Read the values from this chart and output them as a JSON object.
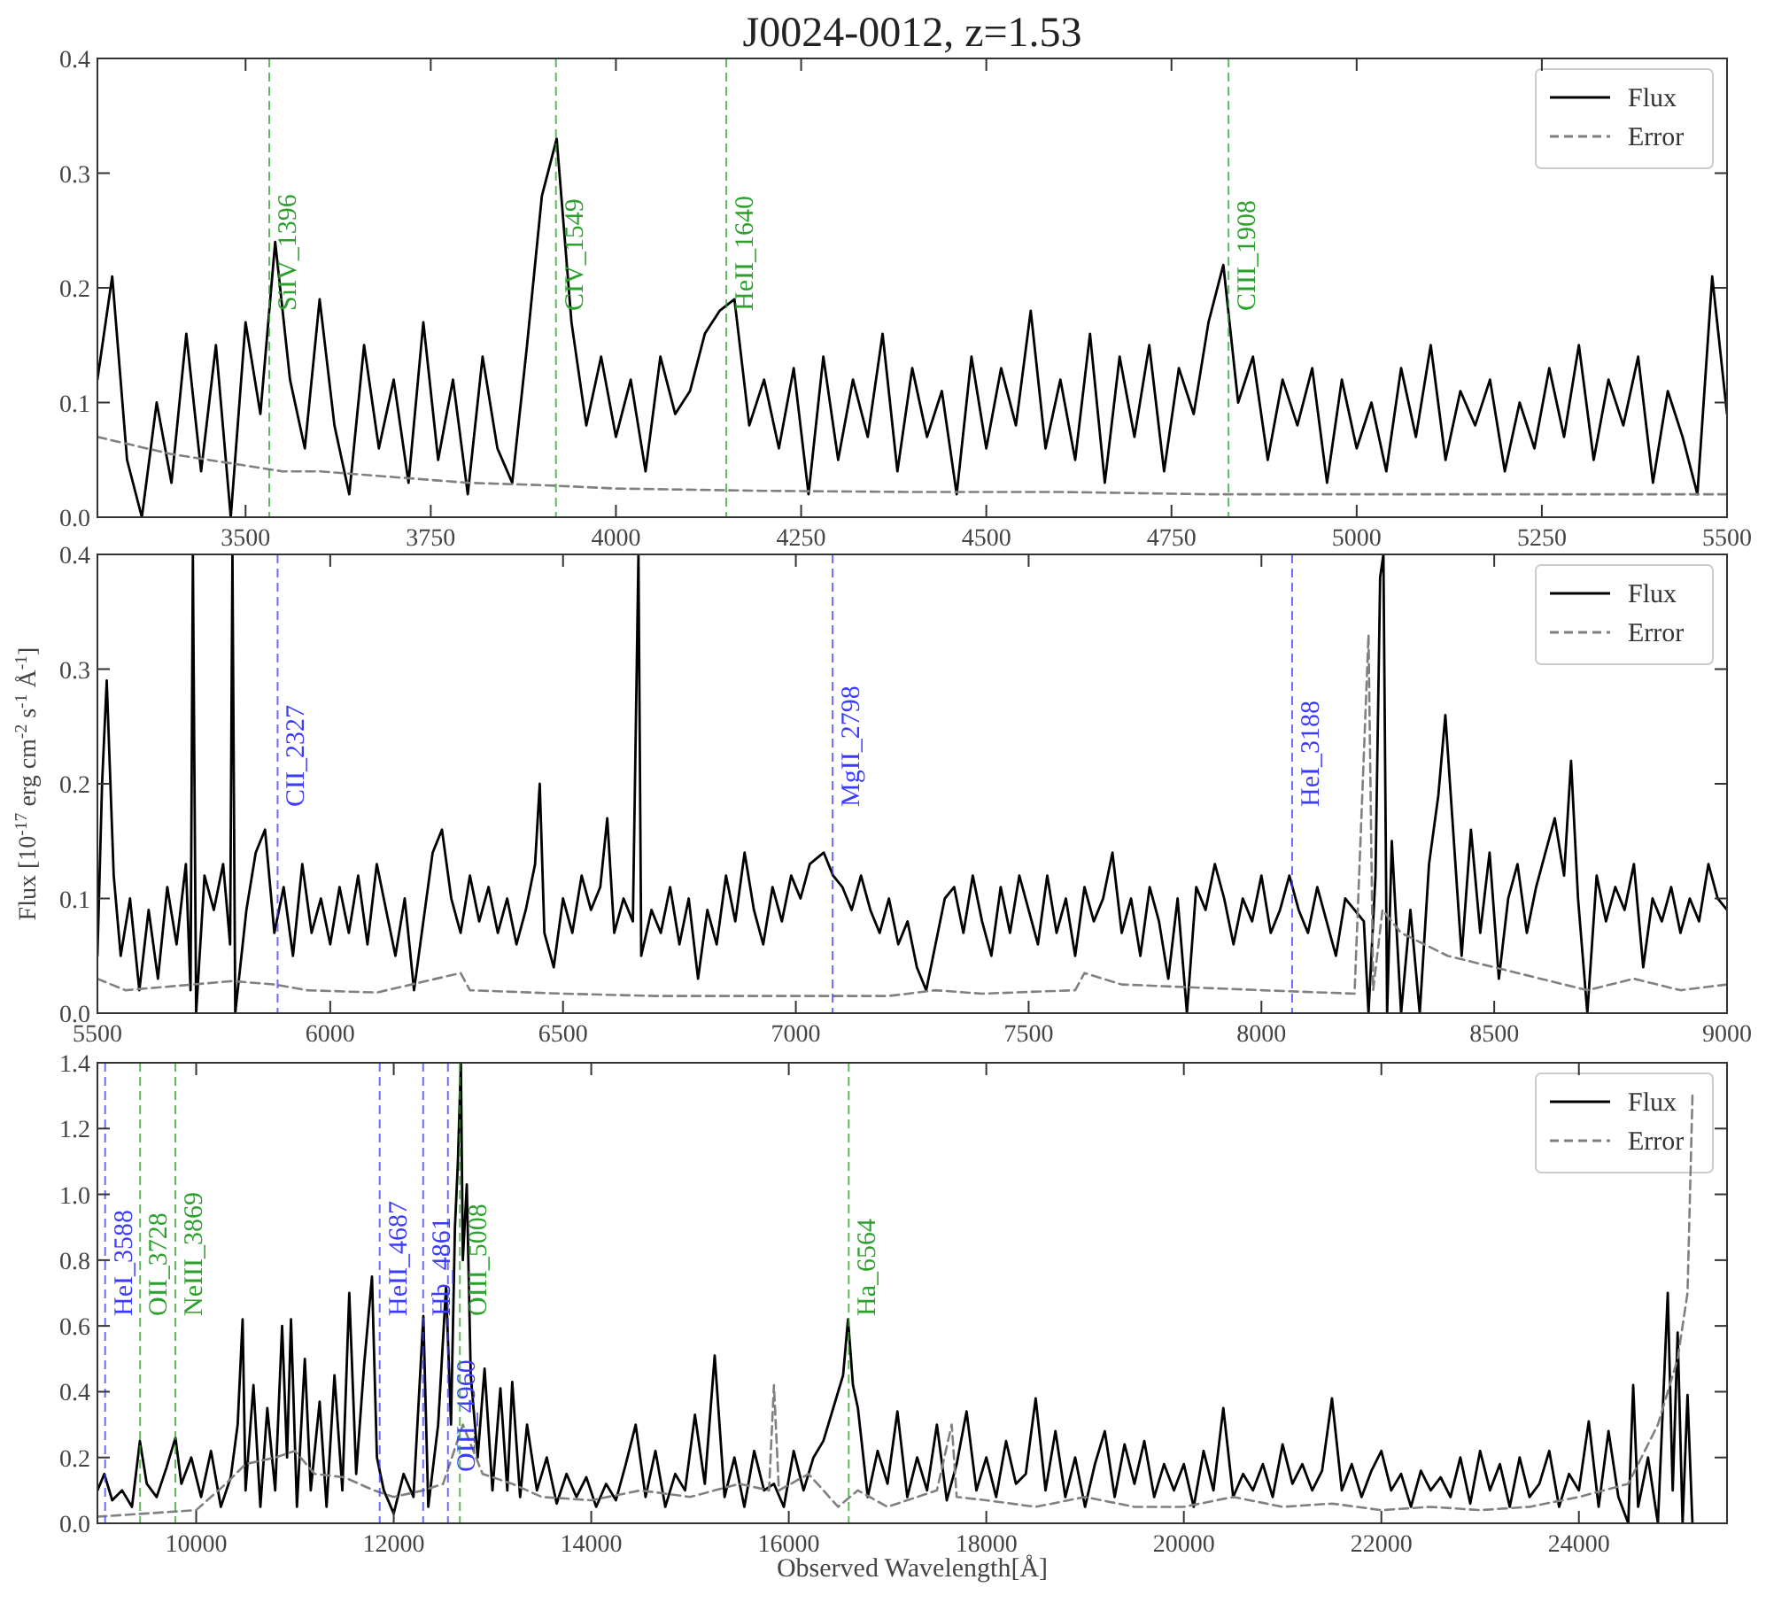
{
  "chart_data": [
    {
      "type": "line",
      "title": "J0024-0012, z=1.53",
      "xlim": [
        3300,
        5500
      ],
      "ylim": [
        0,
        0.4
      ],
      "xticks": [
        3500,
        3750,
        4000,
        4250,
        4500,
        4750,
        5000,
        5250,
        5500
      ],
      "yticks": [
        {
          "value": 0,
          "label": "0.0"
        },
        {
          "value": 0.1,
          "label": "0.1"
        },
        {
          "value": 0.2,
          "label": "0.2"
        },
        {
          "value": 0.3,
          "label": "0.3"
        },
        {
          "value": 0.4,
          "label": "0.4"
        }
      ],
      "legend": "top right",
      "grid": false,
      "series": [
        {
          "name": "Flux",
          "color": "#000000",
          "line_style": "solid",
          "x": [
            3300,
            3320,
            3340,
            3360,
            3380,
            3400,
            3420,
            3440,
            3460,
            3480,
            3500,
            3520,
            3540,
            3560,
            3580,
            3600,
            3620,
            3640,
            3660,
            3680,
            3700,
            3720,
            3740,
            3760,
            3780,
            3800,
            3820,
            3840,
            3860,
            3880,
            3900,
            3920,
            3940,
            3960,
            3980,
            4000,
            4020,
            4040,
            4060,
            4080,
            4100,
            4120,
            4140,
            4160,
            4180,
            4200,
            4220,
            4240,
            4260,
            4280,
            4300,
            4320,
            4340,
            4360,
            4380,
            4400,
            4420,
            4440,
            4460,
            4480,
            4500,
            4520,
            4540,
            4560,
            4580,
            4600,
            4620,
            4640,
            4660,
            4680,
            4700,
            4720,
            4740,
            4760,
            4780,
            4800,
            4820,
            4840,
            4860,
            4880,
            4900,
            4920,
            4940,
            4960,
            4980,
            5000,
            5020,
            5040,
            5060,
            5080,
            5100,
            5120,
            5140,
            5160,
            5180,
            5200,
            5220,
            5240,
            5260,
            5280,
            5300,
            5320,
            5340,
            5360,
            5380,
            5400,
            5420,
            5440,
            5460,
            5480,
            5500
          ],
          "values": [
            0.12,
            0.21,
            0.05,
            0.0,
            0.1,
            0.03,
            0.16,
            0.04,
            0.15,
            0.0,
            0.17,
            0.09,
            0.24,
            0.12,
            0.06,
            0.19,
            0.08,
            0.02,
            0.15,
            0.06,
            0.12,
            0.03,
            0.17,
            0.05,
            0.12,
            0.02,
            0.14,
            0.06,
            0.03,
            0.15,
            0.28,
            0.33,
            0.17,
            0.08,
            0.14,
            0.07,
            0.12,
            0.04,
            0.14,
            0.09,
            0.11,
            0.16,
            0.18,
            0.19,
            0.08,
            0.12,
            0.06,
            0.13,
            0.02,
            0.14,
            0.05,
            0.12,
            0.07,
            0.16,
            0.04,
            0.13,
            0.07,
            0.11,
            0.02,
            0.14,
            0.06,
            0.13,
            0.08,
            0.18,
            0.06,
            0.12,
            0.05,
            0.16,
            0.03,
            0.14,
            0.07,
            0.15,
            0.04,
            0.13,
            0.09,
            0.17,
            0.22,
            0.1,
            0.14,
            0.05,
            0.12,
            0.08,
            0.13,
            0.03,
            0.12,
            0.06,
            0.1,
            0.04,
            0.13,
            0.07,
            0.15,
            0.05,
            0.11,
            0.08,
            0.12,
            0.04,
            0.1,
            0.06,
            0.13,
            0.07,
            0.15,
            0.05,
            0.12,
            0.08,
            0.14,
            0.03,
            0.11,
            0.07,
            0.02,
            0.21,
            0.09
          ]
        },
        {
          "name": "Error",
          "color": "#808080",
          "line_style": "dashed",
          "x": [
            3300,
            3400,
            3500,
            3550,
            3600,
            3700,
            3800,
            3900,
            4000,
            4200,
            4400,
            4600,
            4800,
            5000,
            5200,
            5400,
            5500
          ],
          "values": [
            0.07,
            0.055,
            0.045,
            0.04,
            0.04,
            0.035,
            0.03,
            0.028,
            0.025,
            0.023,
            0.022,
            0.022,
            0.02,
            0.02,
            0.02,
            0.02,
            0.02
          ]
        }
      ],
      "ref_lines": [
        {
          "axis": "x",
          "value": 3532,
          "label": "SiIV_1396",
          "color": "#2ca02c",
          "line_style": "dashed"
        },
        {
          "axis": "x",
          "value": 3919,
          "label": "CIV_1549",
          "color": "#2ca02c",
          "line_style": "dashed"
        },
        {
          "axis": "x",
          "value": 4149,
          "label": "HeII_1640",
          "color": "#2ca02c",
          "line_style": "dashed"
        },
        {
          "axis": "x",
          "value": 4827,
          "label": "CIII_1908",
          "color": "#2ca02c",
          "line_style": "dashed"
        }
      ]
    },
    {
      "type": "line",
      "ylabel": "Flux [10$^{-17}$ erg cm$^{-2}$ s$^{-1}$ Å$^{-1}$]",
      "xlim": [
        5500,
        9000
      ],
      "ylim": [
        0,
        0.4
      ],
      "xticks": [
        5500,
        6000,
        6500,
        7000,
        7500,
        8000,
        8500,
        9000
      ],
      "yticks": [
        {
          "value": 0,
          "label": "0.0"
        },
        {
          "value": 0.1,
          "label": "0.1"
        },
        {
          "value": 0.2,
          "label": "0.2"
        },
        {
          "value": 0.3,
          "label": "0.3"
        },
        {
          "value": 0.4,
          "label": "0.4"
        }
      ],
      "legend": "top right",
      "grid": false,
      "series": [
        {
          "name": "Flux",
          "color": "#000000",
          "line_style": "solid",
          "x": [
            5500,
            5510,
            5520,
            5535,
            5550,
            5570,
            5590,
            5610,
            5630,
            5650,
            5670,
            5690,
            5700,
            5705,
            5712,
            5730,
            5750,
            5770,
            5785,
            5790,
            5796,
            5820,
            5840,
            5860,
            5880,
            5900,
            5920,
            5940,
            5960,
            5980,
            6000,
            6020,
            6040,
            6060,
            6080,
            6100,
            6120,
            6140,
            6160,
            6180,
            6200,
            6220,
            6240,
            6260,
            6280,
            6300,
            6320,
            6340,
            6360,
            6380,
            6400,
            6420,
            6440,
            6450,
            6460,
            6480,
            6500,
            6520,
            6540,
            6560,
            6580,
            6595,
            6610,
            6630,
            6650,
            6662,
            6668,
            6690,
            6710,
            6730,
            6750,
            6770,
            6790,
            6810,
            6830,
            6850,
            6870,
            6890,
            6910,
            6930,
            6950,
            6970,
            6990,
            7010,
            7030,
            7060,
            7080,
            7100,
            7120,
            7140,
            7160,
            7180,
            7200,
            7220,
            7240,
            7260,
            7280,
            7300,
            7320,
            7340,
            7360,
            7380,
            7400,
            7420,
            7440,
            7460,
            7480,
            7500,
            7520,
            7540,
            7560,
            7580,
            7600,
            7620,
            7640,
            7660,
            7680,
            7700,
            7720,
            7740,
            7760,
            7780,
            7800,
            7820,
            7840,
            7860,
            7880,
            7900,
            7920,
            7940,
            7960,
            7980,
            8000,
            8020,
            8040,
            8060,
            8080,
            8100,
            8120,
            8140,
            8160,
            8180,
            8200,
            8220,
            8230,
            8245,
            8255,
            8262,
            8270,
            8280,
            8300,
            8320,
            8340,
            8360,
            8380,
            8395,
            8410,
            8430,
            8450,
            8470,
            8490,
            8510,
            8530,
            8550,
            8570,
            8590,
            8610,
            8630,
            8650,
            8665,
            8680,
            8700,
            8720,
            8740,
            8760,
            8780,
            8800,
            8820,
            8840,
            8860,
            8880,
            8900,
            8920,
            8940,
            8960,
            8980,
            9000
          ],
          "values": [
            0.05,
            0.2,
            0.29,
            0.12,
            0.05,
            0.1,
            0.02,
            0.09,
            0.03,
            0.11,
            0.06,
            0.13,
            0.02,
            0.4,
            0.0,
            0.12,
            0.09,
            0.13,
            0.06,
            0.4,
            0.0,
            0.09,
            0.14,
            0.16,
            0.07,
            0.11,
            0.05,
            0.13,
            0.07,
            0.1,
            0.06,
            0.11,
            0.07,
            0.12,
            0.06,
            0.13,
            0.09,
            0.05,
            0.1,
            0.02,
            0.08,
            0.14,
            0.16,
            0.1,
            0.07,
            0.12,
            0.08,
            0.11,
            0.07,
            0.1,
            0.06,
            0.09,
            0.13,
            0.2,
            0.07,
            0.04,
            0.1,
            0.07,
            0.12,
            0.09,
            0.11,
            0.17,
            0.07,
            0.1,
            0.08,
            0.4,
            0.05,
            0.09,
            0.07,
            0.11,
            0.06,
            0.1,
            0.03,
            0.09,
            0.06,
            0.12,
            0.08,
            0.14,
            0.09,
            0.06,
            0.11,
            0.08,
            0.12,
            0.1,
            0.13,
            0.14,
            0.12,
            0.11,
            0.09,
            0.12,
            0.09,
            0.07,
            0.1,
            0.06,
            0.08,
            0.04,
            0.02,
            0.06,
            0.1,
            0.11,
            0.07,
            0.12,
            0.08,
            0.05,
            0.11,
            0.07,
            0.12,
            0.09,
            0.06,
            0.12,
            0.07,
            0.1,
            0.05,
            0.11,
            0.08,
            0.1,
            0.14,
            0.07,
            0.1,
            0.05,
            0.11,
            0.08,
            0.03,
            0.1,
            0.0,
            0.11,
            0.09,
            0.13,
            0.1,
            0.06,
            0.1,
            0.08,
            0.12,
            0.07,
            0.09,
            0.12,
            0.09,
            0.07,
            0.11,
            0.08,
            0.05,
            0.1,
            0.09,
            0.08,
            0.0,
            0.12,
            0.38,
            0.4,
            0.0,
            0.15,
            0.0,
            0.09,
            0.0,
            0.13,
            0.19,
            0.26,
            0.17,
            0.05,
            0.16,
            0.07,
            0.14,
            0.03,
            0.1,
            0.13,
            0.07,
            0.11,
            0.14,
            0.17,
            0.12,
            0.22,
            0.1,
            0.0,
            0.12,
            0.08,
            0.11,
            0.09,
            0.13,
            0.04,
            0.1,
            0.08,
            0.11,
            0.07,
            0.1,
            0.08,
            0.13,
            0.1,
            0.09
          ]
        },
        {
          "name": "Error",
          "color": "#808080",
          "line_style": "dashed",
          "x": [
            5500,
            5530,
            5560,
            5705,
            5790,
            5880,
            5950,
            6100,
            6280,
            6300,
            6500,
            6700,
            7000,
            7200,
            7300,
            7400,
            7600,
            7620,
            7700,
            8000,
            8200,
            8230,
            8240,
            8260,
            8300,
            8400,
            8500,
            8600,
            8700,
            8800,
            8900,
            9000
          ],
          "values": [
            0.03,
            0.025,
            0.02,
            0.025,
            0.028,
            0.025,
            0.02,
            0.018,
            0.035,
            0.02,
            0.017,
            0.015,
            0.015,
            0.015,
            0.02,
            0.017,
            0.02,
            0.035,
            0.025,
            0.02,
            0.017,
            0.33,
            0.02,
            0.09,
            0.07,
            0.05,
            0.04,
            0.03,
            0.02,
            0.03,
            0.02,
            0.025
          ]
        }
      ],
      "ref_lines": [
        {
          "axis": "x",
          "value": 5887,
          "label": "CII_2327",
          "color": "#3b3bff",
          "line_style": "dashed"
        },
        {
          "axis": "x",
          "value": 7079,
          "label": "MgII_2798",
          "color": "#3b3bff",
          "line_style": "dashed"
        },
        {
          "axis": "x",
          "value": 8066,
          "label": "HeI_3188",
          "color": "#3b3bff",
          "line_style": "dashed"
        }
      ]
    },
    {
      "type": "line",
      "xlabel": "Observed Wavelength[Å]",
      "xlim": [
        9000,
        25500
      ],
      "ylim": [
        0,
        1.4
      ],
      "xticks": [
        10000,
        12000,
        14000,
        16000,
        18000,
        20000,
        22000,
        24000
      ],
      "yticks": [
        {
          "value": 0,
          "label": "0.0"
        },
        {
          "value": 0.2,
          "label": "0.2"
        },
        {
          "value": 0.4,
          "label": "0.4"
        },
        {
          "value": 0.6,
          "label": "0.6"
        },
        {
          "value": 0.8,
          "label": "0.8"
        },
        {
          "value": 1.0,
          "label": "1.0"
        },
        {
          "value": 1.2,
          "label": "1.2"
        },
        {
          "value": 1.4,
          "label": "1.4"
        }
      ],
      "legend": "top right",
      "grid": false,
      "series": [
        {
          "name": "Flux",
          "color": "#000000",
          "line_style": "solid",
          "x": [
            9000,
            9070,
            9150,
            9250,
            9350,
            9430,
            9500,
            9600,
            9700,
            9790,
            9850,
            9950,
            10050,
            10150,
            10250,
            10350,
            10420,
            10470,
            10500,
            10580,
            10650,
            10720,
            10800,
            10870,
            10920,
            10960,
            11020,
            11100,
            11160,
            11250,
            11320,
            11400,
            11480,
            11550,
            11620,
            11700,
            11780,
            11830,
            11900,
            12000,
            12100,
            12200,
            12300,
            12350,
            12450,
            12530,
            12580,
            12620,
            12650,
            12680,
            12700,
            12740,
            12780,
            12850,
            12920,
            13000,
            13080,
            13150,
            13200,
            13280,
            13350,
            13450,
            13550,
            13650,
            13750,
            13850,
            13950,
            14050,
            14150,
            14250,
            14350,
            14450,
            14550,
            14650,
            14750,
            14850,
            14950,
            15050,
            15150,
            15250,
            15350,
            15450,
            15550,
            15650,
            15750,
            15850,
            15950,
            16050,
            16150,
            16250,
            16350,
            16450,
            16550,
            16600,
            16650,
            16700,
            16800,
            16900,
            17000,
            17100,
            17200,
            17300,
            17400,
            17500,
            17600,
            17700,
            17800,
            17900,
            18000,
            18100,
            18200,
            18300,
            18400,
            18500,
            18600,
            18700,
            18800,
            18900,
            19000,
            19100,
            19200,
            19300,
            19400,
            19500,
            19600,
            19700,
            19800,
            19900,
            20000,
            20100,
            20200,
            20300,
            20400,
            20500,
            20600,
            20700,
            20800,
            20900,
            21000,
            21100,
            21200,
            21300,
            21400,
            21500,
            21600,
            21700,
            21800,
            21900,
            22000,
            22100,
            22200,
            22300,
            22400,
            22500,
            22600,
            22700,
            22800,
            22900,
            23000,
            23100,
            23200,
            23300,
            23400,
            23500,
            23600,
            23700,
            23800,
            23900,
            24000,
            24100,
            24200,
            24300,
            24400,
            24500,
            24550,
            24600,
            24700,
            24800,
            24900,
            24950,
            25000,
            25050,
            25100,
            25150
          ],
          "values": [
            0.1,
            0.15,
            0.07,
            0.1,
            0.05,
            0.25,
            0.12,
            0.08,
            0.17,
            0.26,
            0.12,
            0.2,
            0.08,
            0.22,
            0.05,
            0.14,
            0.3,
            0.62,
            0.1,
            0.42,
            0.05,
            0.35,
            0.1,
            0.6,
            0.2,
            0.62,
            0.05,
            0.5,
            0.1,
            0.37,
            0.05,
            0.45,
            0.1,
            0.7,
            0.15,
            0.48,
            0.75,
            0.2,
            0.1,
            0.03,
            0.15,
            0.08,
            0.63,
            0.05,
            0.3,
            0.72,
            0.3,
            0.9,
            1.1,
            1.4,
            0.8,
            1.03,
            0.45,
            0.2,
            0.47,
            0.1,
            0.41,
            0.1,
            0.43,
            0.08,
            0.3,
            0.1,
            0.2,
            0.06,
            0.15,
            0.08,
            0.14,
            0.05,
            0.12,
            0.07,
            0.18,
            0.3,
            0.08,
            0.22,
            0.05,
            0.15,
            0.1,
            0.33,
            0.12,
            0.51,
            0.08,
            0.2,
            0.05,
            0.22,
            0.1,
            0.12,
            0.05,
            0.22,
            0.1,
            0.2,
            0.25,
            0.35,
            0.45,
            0.62,
            0.42,
            0.35,
            0.08,
            0.22,
            0.12,
            0.34,
            0.08,
            0.2,
            0.1,
            0.3,
            0.07,
            0.18,
            0.34,
            0.1,
            0.2,
            0.08,
            0.25,
            0.12,
            0.15,
            0.38,
            0.1,
            0.28,
            0.08,
            0.2,
            0.05,
            0.18,
            0.28,
            0.08,
            0.24,
            0.12,
            0.25,
            0.08,
            0.18,
            0.1,
            0.18,
            0.05,
            0.22,
            0.1,
            0.35,
            0.08,
            0.15,
            0.1,
            0.18,
            0.08,
            0.24,
            0.12,
            0.18,
            0.1,
            0.16,
            0.38,
            0.1,
            0.18,
            0.08,
            0.16,
            0.22,
            0.1,
            0.15,
            0.05,
            0.16,
            0.1,
            0.14,
            0.08,
            0.2,
            0.06,
            0.22,
            0.1,
            0.18,
            0.05,
            0.2,
            0.08,
            0.12,
            0.22,
            0.05,
            0.15,
            0.1,
            0.31,
            0.05,
            0.28,
            0.08,
            0.0,
            0.42,
            0.05,
            0.2,
            0.0,
            0.7,
            0.1,
            0.58,
            0.0,
            0.39,
            0.0
          ]
        },
        {
          "name": "Error",
          "color": "#808080",
          "line_style": "dashed",
          "x": [
            9000,
            9500,
            10000,
            10300,
            10500,
            10800,
            11000,
            11200,
            11500,
            11800,
            12000,
            12300,
            12500,
            12700,
            12900,
            13200,
            13500,
            14000,
            14500,
            15000,
            15500,
            15800,
            15850,
            15900,
            16200,
            16500,
            16700,
            17000,
            17500,
            17650,
            17700,
            18000,
            18500,
            19000,
            19500,
            20000,
            20500,
            21000,
            21500,
            22000,
            22500,
            23000,
            23500,
            24000,
            24500,
            24800,
            25000,
            25100,
            25150
          ],
          "values": [
            0.02,
            0.03,
            0.04,
            0.12,
            0.18,
            0.2,
            0.22,
            0.15,
            0.14,
            0.1,
            0.08,
            0.1,
            0.12,
            0.3,
            0.15,
            0.12,
            0.08,
            0.07,
            0.1,
            0.08,
            0.12,
            0.1,
            0.42,
            0.1,
            0.15,
            0.05,
            0.1,
            0.05,
            0.1,
            0.3,
            0.08,
            0.07,
            0.05,
            0.08,
            0.05,
            0.05,
            0.08,
            0.05,
            0.06,
            0.04,
            0.05,
            0.04,
            0.05,
            0.08,
            0.12,
            0.3,
            0.5,
            0.7,
            1.3
          ]
        }
      ],
      "ref_lines": [
        {
          "axis": "x",
          "value": 9078,
          "label": "HeI_3588",
          "color": "#3b3bff",
          "line_style": "dashed"
        },
        {
          "axis": "x",
          "value": 9432,
          "label": "OII_3728",
          "color": "#2ca02c",
          "line_style": "dashed"
        },
        {
          "axis": "x",
          "value": 9789,
          "label": "NeIII_3869",
          "color": "#2ca02c",
          "line_style": "dashed"
        },
        {
          "axis": "x",
          "value": 11858,
          "label": "HeII_4687",
          "color": "#3b3bff",
          "line_style": "dashed"
        },
        {
          "axis": "x",
          "value": 12298,
          "label": "Hb_4861",
          "color": "#3b3bff",
          "line_style": "dashed"
        },
        {
          "axis": "x",
          "value": 12549,
          "label": "OIII_4960",
          "color": "#3b3bff",
          "line_style": "dashed"
        },
        {
          "axis": "x",
          "value": 12670,
          "label": "OIII_5008",
          "color": "#2ca02c",
          "line_style": "dashed"
        },
        {
          "axis": "x",
          "value": 16607,
          "label": "Ha_6564",
          "color": "#2ca02c",
          "line_style": "dashed"
        }
      ]
    }
  ]
}
